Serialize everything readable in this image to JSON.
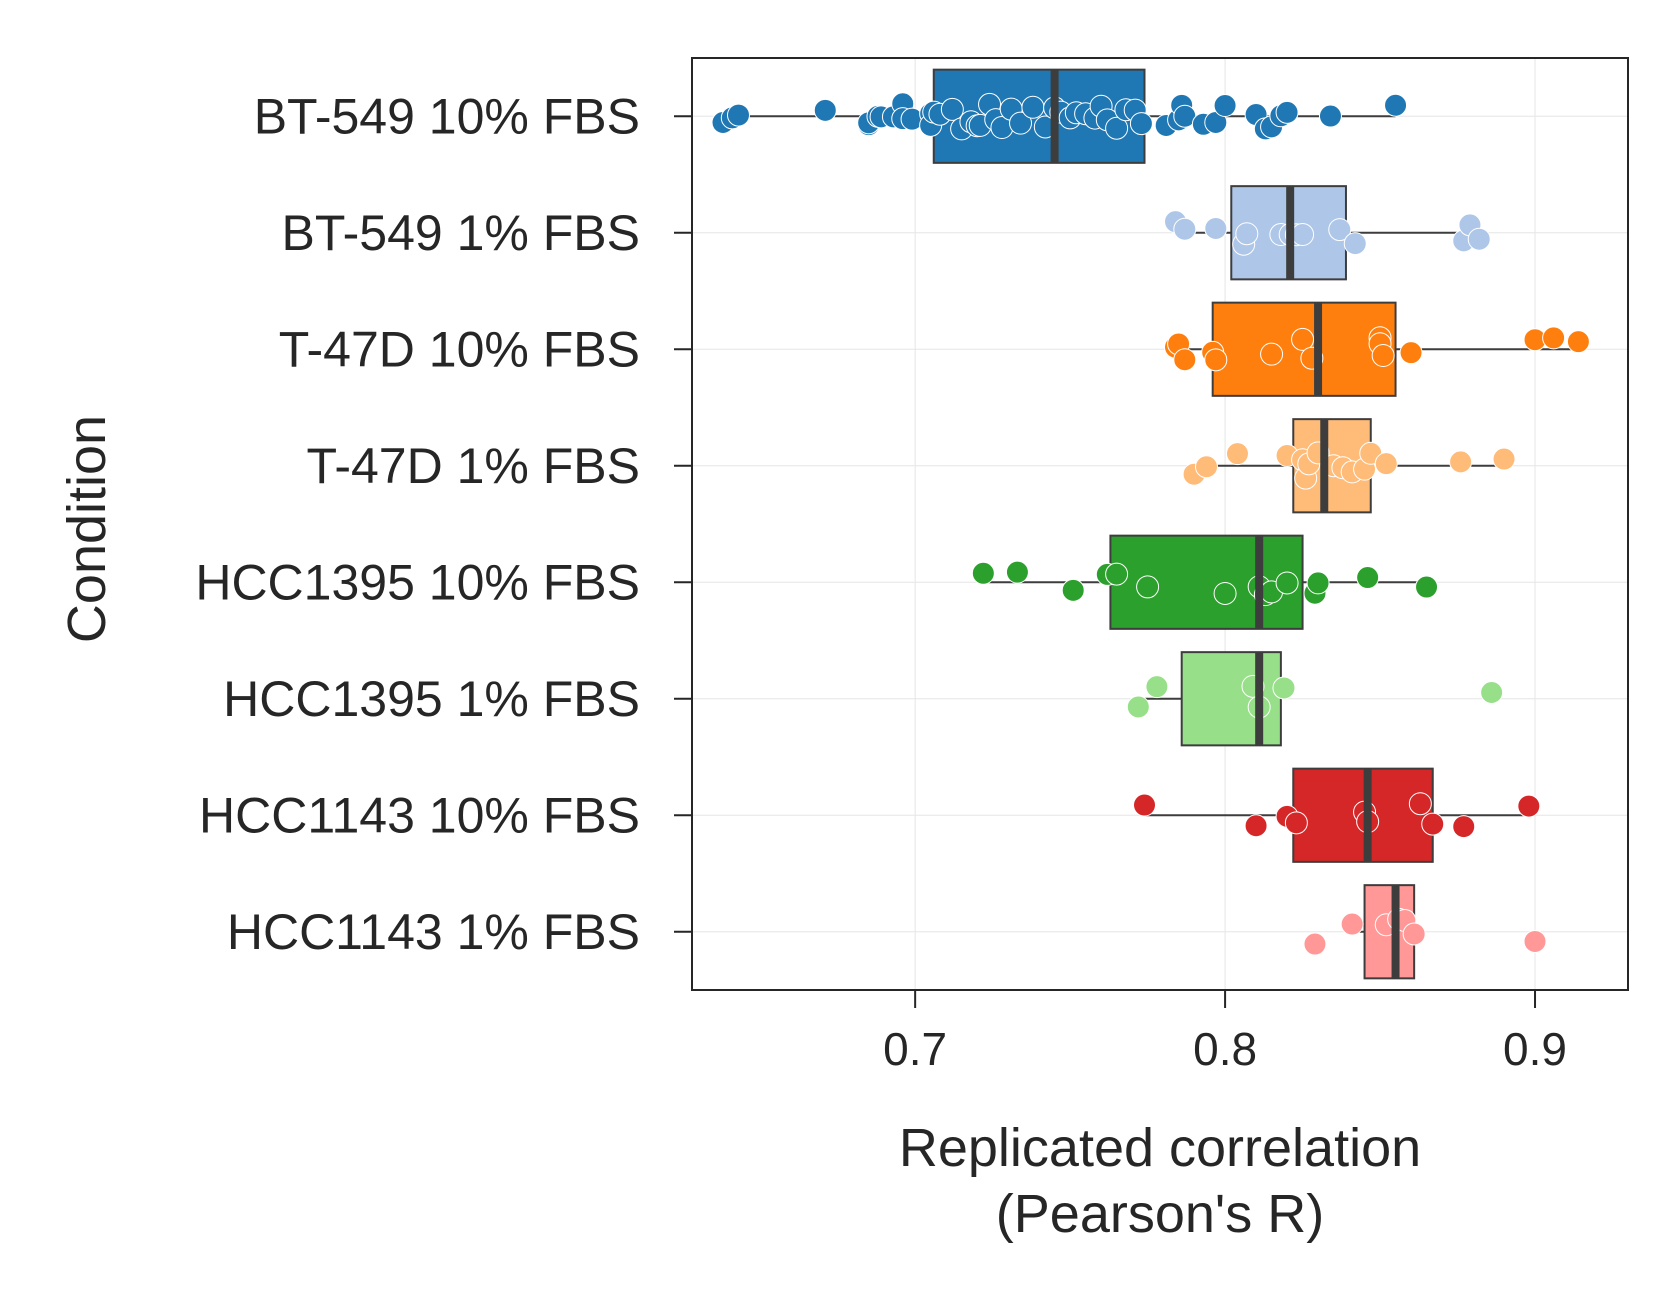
{
  "chart_data": {
    "type": "box",
    "orientation": "horizontal",
    "xlabel_lines": [
      "Replicated correlation",
      "(Pearson's R)"
    ],
    "ylabel": "Condition",
    "xlim": [
      0.628,
      0.93
    ],
    "xticks": [
      0.7,
      0.8,
      0.9
    ],
    "xtick_labels": [
      "0.7",
      "0.8",
      "0.9"
    ],
    "grid": true,
    "legend": false,
    "categories": [
      "BT-549 10% FBS",
      "BT-549 1% FBS",
      "T-47D 10% FBS",
      "T-47D 1% FBS",
      "HCC1395 10% FBS",
      "HCC1395 1% FBS",
      "HCC1143 10% FBS",
      "HCC1143 1% FBS"
    ],
    "colors": [
      "#1f77b4",
      "#aec7e8",
      "#ff7f0e",
      "#ffbb78",
      "#2ca02c",
      "#98df8a",
      "#d62728",
      "#ff9896"
    ],
    "boxes": [
      {
        "whisker_low": 0.64,
        "q1": 0.706,
        "median": 0.745,
        "q3": 0.774,
        "whisker_high": 0.855
      },
      {
        "whisker_low": 0.784,
        "q1": 0.802,
        "median": 0.821,
        "q3": 0.839,
        "whisker_high": 0.882
      },
      {
        "whisker_low": 0.785,
        "q1": 0.796,
        "median": 0.83,
        "q3": 0.855,
        "whisker_high": 0.914
      },
      {
        "whisker_low": 0.79,
        "q1": 0.822,
        "median": 0.832,
        "q3": 0.847,
        "whisker_high": 0.89
      },
      {
        "whisker_low": 0.722,
        "q1": 0.763,
        "median": 0.811,
        "q3": 0.825,
        "whisker_high": 0.865
      },
      {
        "whisker_low": 0.772,
        "q1": 0.786,
        "median": 0.811,
        "q3": 0.818,
        "whisker_high": 0.818
      },
      {
        "whisker_low": 0.774,
        "q1": 0.822,
        "median": 0.846,
        "q3": 0.867,
        "whisker_high": 0.898
      },
      {
        "whisker_low": 0.841,
        "q1": 0.845,
        "median": 0.855,
        "q3": 0.861,
        "whisker_high": 0.861
      }
    ],
    "points": [
      [
        0.638,
        0.641,
        0.643,
        0.671,
        0.685,
        0.685,
        0.688,
        0.689,
        0.693,
        0.696,
        0.696,
        0.699,
        0.705,
        0.705,
        0.706,
        0.708,
        0.712,
        0.715,
        0.718,
        0.72,
        0.721,
        0.724,
        0.726,
        0.728,
        0.731,
        0.734,
        0.738,
        0.742,
        0.745,
        0.747,
        0.75,
        0.752,
        0.755,
        0.758,
        0.76,
        0.762,
        0.765,
        0.768,
        0.771,
        0.773,
        0.781,
        0.785,
        0.786,
        0.787,
        0.793,
        0.797,
        0.8,
        0.81,
        0.813,
        0.815,
        0.818,
        0.82,
        0.834,
        0.855
      ],
      [
        0.784,
        0.787,
        0.797,
        0.806,
        0.807,
        0.818,
        0.821,
        0.823,
        0.825,
        0.837,
        0.842,
        0.877,
        0.879,
        0.882
      ],
      [
        0.784,
        0.785,
        0.787,
        0.796,
        0.797,
        0.815,
        0.825,
        0.828,
        0.85,
        0.85,
        0.851,
        0.86,
        0.9,
        0.906,
        0.914
      ],
      [
        0.79,
        0.794,
        0.804,
        0.82,
        0.825,
        0.826,
        0.827,
        0.83,
        0.835,
        0.838,
        0.841,
        0.845,
        0.847,
        0.852,
        0.876,
        0.89
      ],
      [
        0.722,
        0.733,
        0.751,
        0.762,
        0.765,
        0.775,
        0.8,
        0.811,
        0.813,
        0.815,
        0.82,
        0.829,
        0.83,
        0.846,
        0.865
      ],
      [
        0.772,
        0.778,
        0.809,
        0.811,
        0.819,
        0.886
      ],
      [
        0.774,
        0.81,
        0.82,
        0.823,
        0.845,
        0.846,
        0.863,
        0.867,
        0.877,
        0.898
      ],
      [
        0.829,
        0.841,
        0.852,
        0.856,
        0.858,
        0.861,
        0.9
      ]
    ]
  }
}
